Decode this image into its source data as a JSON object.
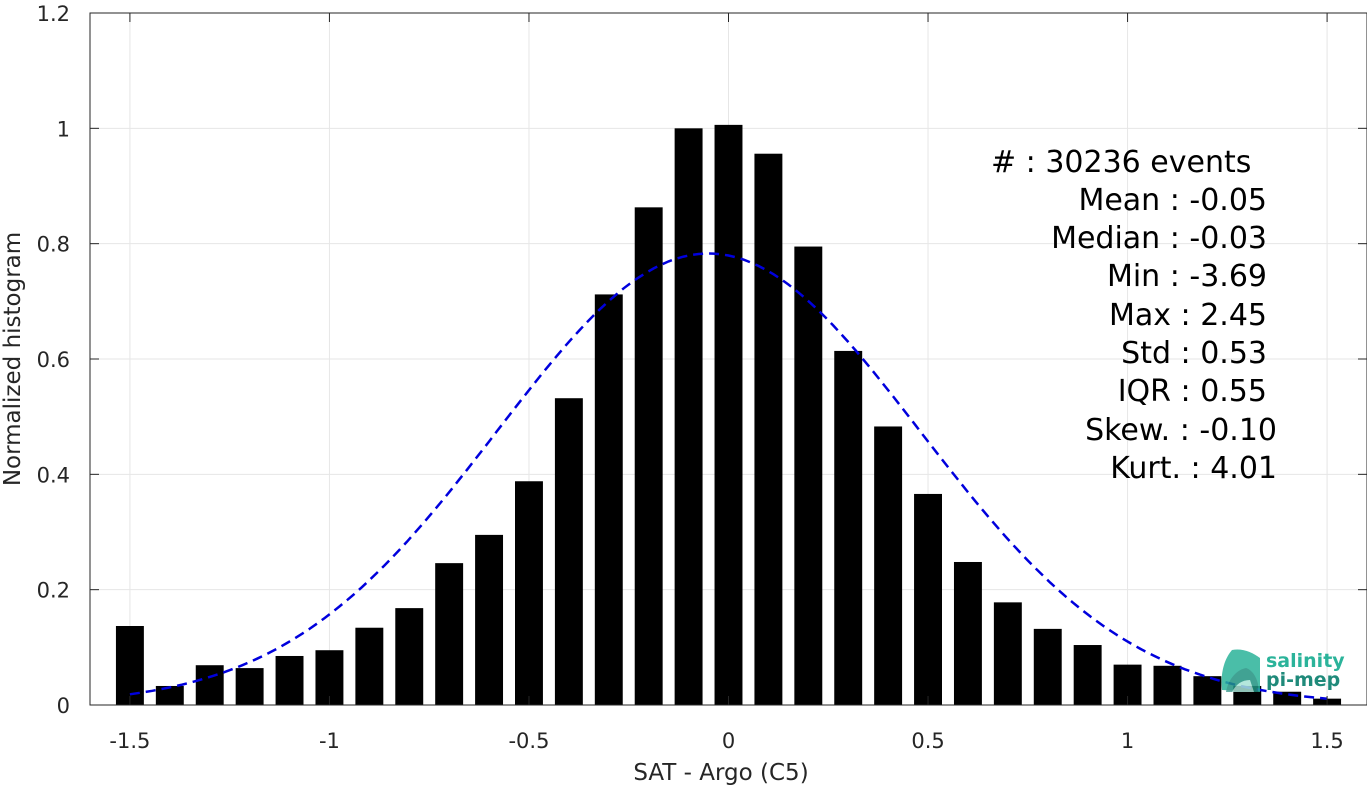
{
  "chart_data": {
    "type": "bar",
    "xlabel": "SAT - Argo (C5)",
    "ylabel": "Normalized histogram",
    "xlim": [
      -1.6,
      1.6
    ],
    "ylim": [
      0,
      1.2
    ],
    "xticks": [
      -1.5,
      -1,
      -0.5,
      0,
      0.5,
      1,
      1.5
    ],
    "xtick_labels": [
      "-1.5",
      "-1",
      "-0.5",
      "0",
      "0.5",
      "1",
      "1.5"
    ],
    "yticks": [
      0,
      0.2,
      0.4,
      0.6,
      0.8,
      1,
      1.2
    ],
    "ytick_labels": [
      "0",
      "0.2",
      "0.4",
      "0.6",
      "0.8",
      "1",
      "1.2"
    ],
    "grid": true,
    "bar_width": 0.07,
    "bar_color": "#000000",
    "bars": [
      {
        "x": -1.5,
        "y": 0.137
      },
      {
        "x": -1.4,
        "y": 0.033
      },
      {
        "x": -1.3,
        "y": 0.069
      },
      {
        "x": -1.2,
        "y": 0.064
      },
      {
        "x": -1.1,
        "y": 0.085
      },
      {
        "x": -1.0,
        "y": 0.095
      },
      {
        "x": -0.9,
        "y": 0.134
      },
      {
        "x": -0.8,
        "y": 0.168
      },
      {
        "x": -0.7,
        "y": 0.246
      },
      {
        "x": -0.6,
        "y": 0.295
      },
      {
        "x": -0.5,
        "y": 0.388
      },
      {
        "x": -0.4,
        "y": 0.532
      },
      {
        "x": -0.3,
        "y": 0.712
      },
      {
        "x": -0.2,
        "y": 0.863
      },
      {
        "x": -0.1,
        "y": 1.0
      },
      {
        "x": 0.0,
        "y": 1.006
      },
      {
        "x": 0.1,
        "y": 0.956
      },
      {
        "x": 0.2,
        "y": 0.795
      },
      {
        "x": 0.3,
        "y": 0.614
      },
      {
        "x": 0.4,
        "y": 0.483
      },
      {
        "x": 0.5,
        "y": 0.366
      },
      {
        "x": 0.6,
        "y": 0.248
      },
      {
        "x": 0.7,
        "y": 0.178
      },
      {
        "x": 0.8,
        "y": 0.132
      },
      {
        "x": 0.9,
        "y": 0.104
      },
      {
        "x": 1.0,
        "y": 0.07
      },
      {
        "x": 1.1,
        "y": 0.068
      },
      {
        "x": 1.2,
        "y": 0.05
      },
      {
        "x": 1.3,
        "y": 0.033
      },
      {
        "x": 1.4,
        "y": 0.023
      },
      {
        "x": 1.5,
        "y": 0.011
      }
    ],
    "fit_curve": {
      "style": "dashed",
      "color": "#0000dd",
      "mean": -0.05,
      "peak": 0.783,
      "std": 0.53,
      "x_range": [
        -1.5,
        1.5
      ]
    },
    "annotations": [
      "#  : 30236 events",
      "Mean : -0.05",
      "Median : -0.03",
      "Min : -3.69",
      "Max : 2.45",
      "Std : 0.53",
      "IQR : 0.55",
      "Skew. : -0.10",
      "Kurt. : 4.01"
    ]
  },
  "logo": {
    "line1": "salinity",
    "line2": "pi-mep",
    "color1": "#2bb39a",
    "color2": "#1f8a7a"
  }
}
